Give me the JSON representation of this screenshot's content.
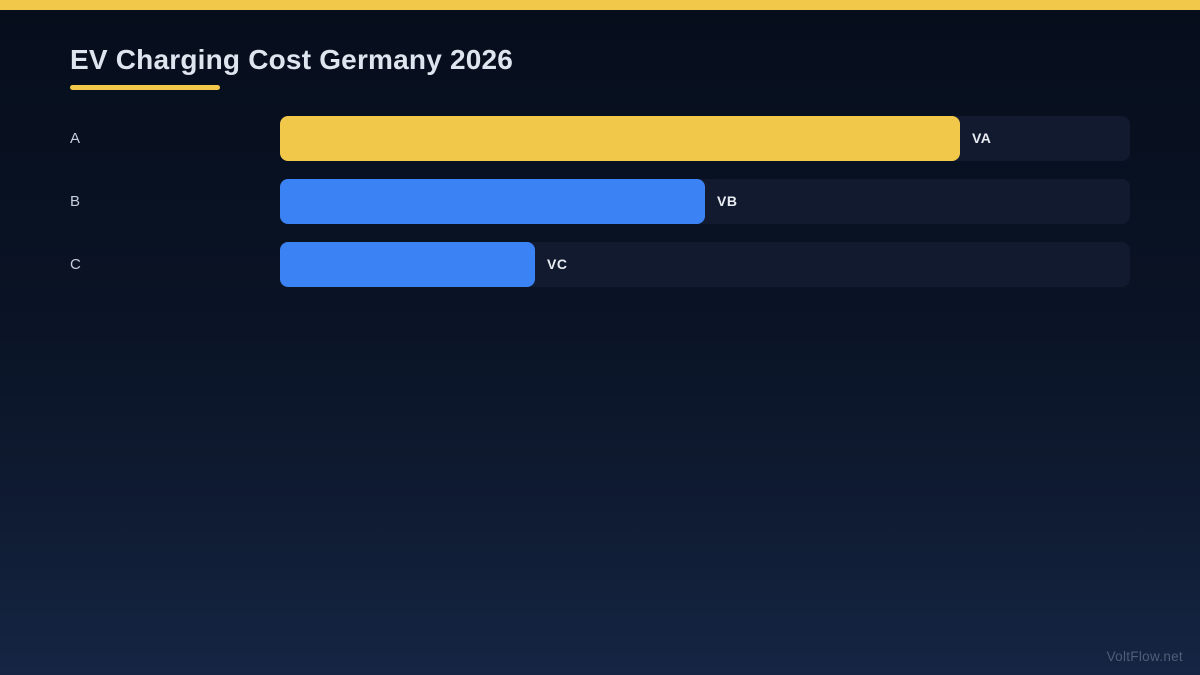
{
  "page": {
    "title": "EV Charging Cost Germany 2026",
    "watermark": "VoltFlow.net"
  },
  "colors": {
    "accent_yellow": "#F2C84B",
    "bar_blue": "#3B82F5",
    "track": "#111A2E",
    "background_top": "#060E1C",
    "background_bottom": "#152543",
    "title_text": "#DEE5EF",
    "category_text": "#C6CFDB",
    "value_text": "#E9EDF3",
    "watermark_text": "#4D5F7A"
  },
  "chart_data": {
    "type": "bar",
    "orientation": "horizontal",
    "title": "EV Charging Cost Germany 2026",
    "categories": [
      "A",
      "B",
      "C"
    ],
    "values": [
      "VA",
      "VB",
      "VC"
    ],
    "bar_fractions": [
      0.8,
      0.5,
      0.3
    ],
    "bar_colors": [
      "#F2C84B",
      "#3B82F5",
      "#3B82F5"
    ],
    "xlabel": "",
    "ylabel": "",
    "legend": false,
    "grid": false,
    "value_label_position": "outside-right"
  }
}
